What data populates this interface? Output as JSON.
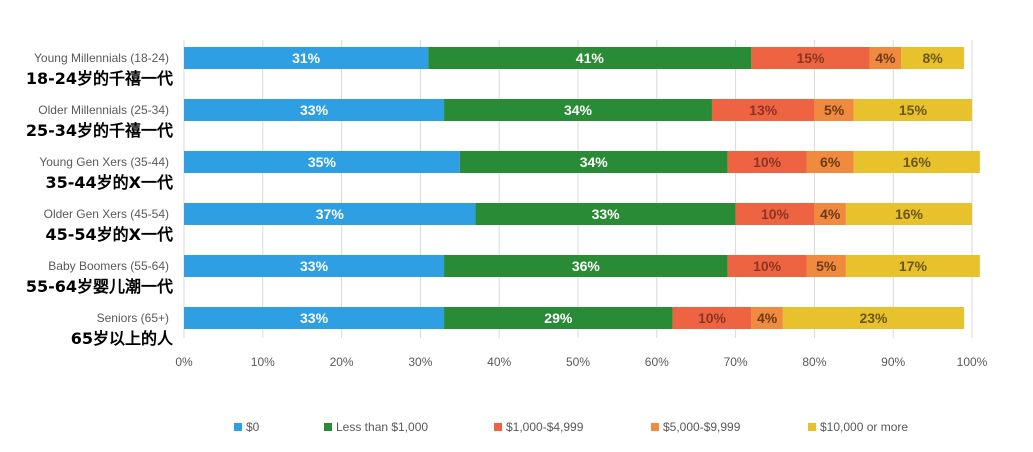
{
  "chart_data": {
    "type": "bar",
    "orientation": "horizontal",
    "stacked": "percent",
    "categories": [
      {
        "en": "Young Millennials (18-24)",
        "zh": "18-24岁的千禧一代"
      },
      {
        "en": "Older Millennials (25-34)",
        "zh": "25-34岁的千禧一代"
      },
      {
        "en": "Young Gen Xers (35-44)",
        "zh": "35-44岁的X一代"
      },
      {
        "en": "Older Gen Xers (45-54)",
        "zh": "45-54岁的X一代"
      },
      {
        "en": "Baby Boomers (55-64)",
        "zh": "55-64岁婴儿潮一代"
      },
      {
        "en": "Seniors (65+)",
        "zh": "65岁以上的人"
      }
    ],
    "series": [
      {
        "name": "$0",
        "color": "#2E9FE3",
        "label_color": "#ffffff",
        "values": [
          31,
          33,
          35,
          37,
          33,
          33
        ]
      },
      {
        "name": "Less than $1,000",
        "color": "#2A8B36",
        "label_color": "#ffffff",
        "values": [
          41,
          34,
          34,
          33,
          36,
          29
        ]
      },
      {
        "name": "$1,000-$4,999",
        "color": "#EE6443",
        "label_color": "#8C3520",
        "values": [
          15,
          13,
          10,
          10,
          10,
          10
        ]
      },
      {
        "name": "$5,000-$9,999",
        "color": "#F08A3E",
        "label_color": "#6B3A14",
        "values": [
          4,
          5,
          6,
          4,
          5,
          4
        ]
      },
      {
        "name": "$10,000 or more",
        "color": "#E8C22C",
        "label_color": "#6B5610",
        "values": [
          8,
          15,
          16,
          16,
          17,
          23
        ]
      }
    ],
    "xlim": [
      0,
      100
    ],
    "x_ticks": [
      "0%",
      "10%",
      "20%",
      "30%",
      "40%",
      "50%",
      "60%",
      "70%",
      "80%",
      "90%",
      "100%"
    ],
    "grid": true,
    "legend_position": "bottom",
    "title": "",
    "xlabel": "",
    "ylabel": ""
  }
}
